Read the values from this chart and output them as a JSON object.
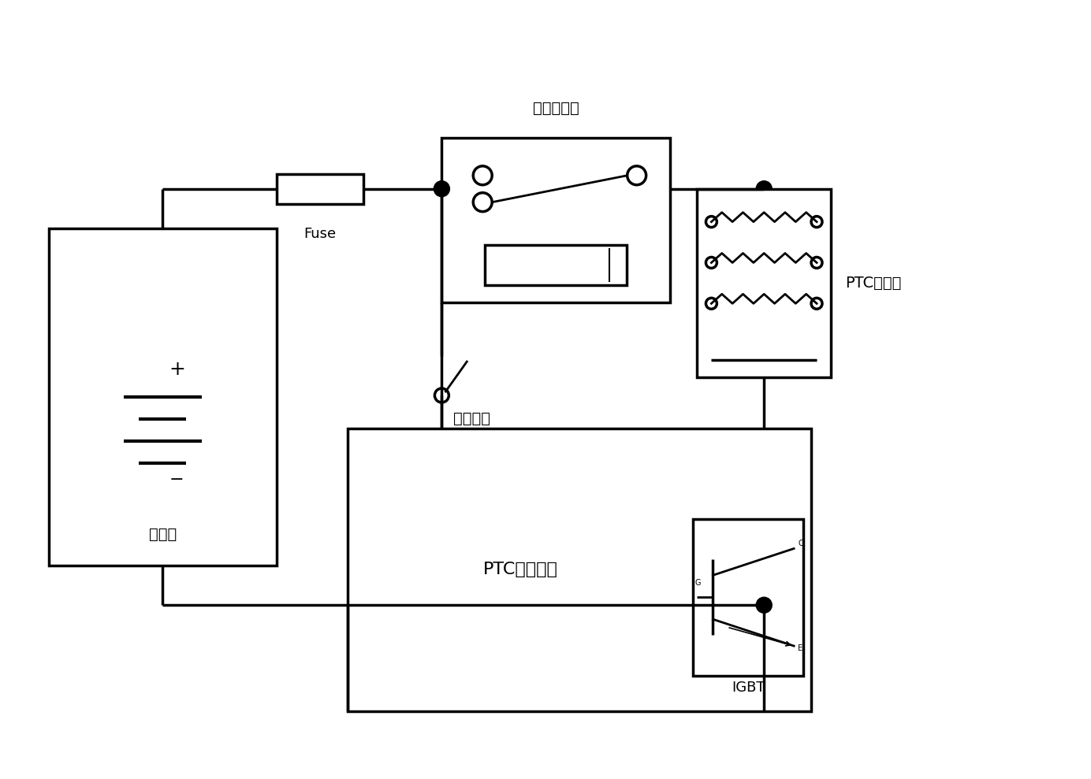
{
  "bg_color": "#ffffff",
  "line_color": "#000000",
  "line_width": 2.5,
  "font_color": "#000000",
  "labels": {
    "battery": "高压电",
    "fuse": "Fuse",
    "relay": "高压继电器",
    "ptc": "PTC发热体",
    "thermo": "温控开关",
    "controller": "PTC主控制器",
    "igbt": "IGBT"
  }
}
